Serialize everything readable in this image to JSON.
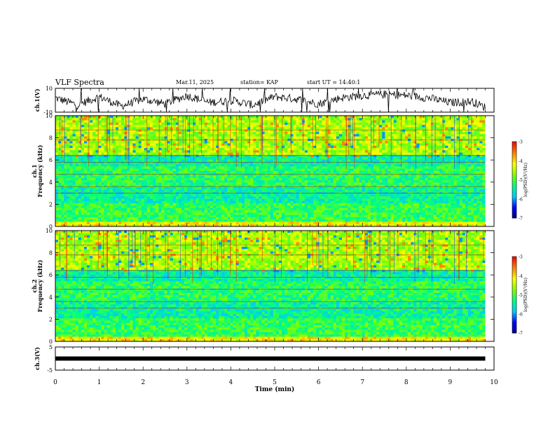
{
  "header": {
    "title": "VLF Spectra",
    "date": "Mar.11, 2025",
    "station": "station= KAP",
    "start": "start UT =  14:40:1"
  },
  "chart_data": [
    {
      "type": "line",
      "panel": "ch1-waveform",
      "ylabel": "ch.1(V)",
      "ylim": [
        -10,
        10
      ],
      "yticks": [
        "10",
        "-10"
      ],
      "series_color": "#000000",
      "note_values": "waveform trace spanning the full range, roughly -10 to 10 V",
      "x": [
        0,
        0.5,
        1,
        1.5,
        2,
        2.5,
        3,
        3.5,
        4,
        4.5,
        5,
        5.5,
        6,
        6.5,
        7,
        7.5,
        8,
        8.5,
        9,
        9.5,
        9.8
      ],
      "values": [
        2,
        -4,
        3,
        -5,
        1,
        -3,
        4,
        -2,
        0,
        -4,
        3,
        1,
        -3,
        2,
        4,
        5,
        4,
        2,
        -2,
        -1,
        -6
      ]
    },
    {
      "type": "heatmap",
      "panel": "ch1-spectrogram",
      "ylabel": "ch.1\nFrequency (kHz)",
      "ylim": [
        0,
        10
      ],
      "yticks": [
        "0",
        "2",
        "4",
        "6",
        "8",
        "10"
      ],
      "colorbar": {
        "label": "log(PSD)(V²/Hz)",
        "ticks": [
          "-3",
          "-4",
          "-5",
          "-6",
          "-7"
        ],
        "range": [
          -7,
          -3
        ]
      }
    },
    {
      "type": "heatmap",
      "panel": "ch2-spectrogram",
      "ylabel": "ch.2\nFrequency (kHz)",
      "ylim": [
        0,
        10
      ],
      "yticks": [
        "0",
        "2",
        "4",
        "6",
        "8",
        "10"
      ],
      "colorbar": {
        "label": "log(PSD)(V²/Hz)",
        "ticks": [
          "-3",
          "-4",
          "-5",
          "-6",
          "-7"
        ],
        "range": [
          -7,
          -3
        ]
      }
    },
    {
      "type": "line",
      "panel": "ch3-signal",
      "ylabel": "ch.3(V)",
      "ylim": [
        -5,
        5
      ],
      "yticks": [
        "5",
        "-5"
      ],
      "x": [
        0,
        9.8
      ],
      "values": [
        0,
        0
      ]
    }
  ],
  "xaxis": {
    "label": "Time (min)",
    "range": [
      0,
      10
    ],
    "ticks": [
      "0",
      "1",
      "2",
      "3",
      "4",
      "5",
      "6",
      "7",
      "8",
      "9",
      "10"
    ]
  },
  "colormap": [
    "#000080",
    "#0000ff",
    "#00c8ff",
    "#00ff80",
    "#80ff00",
    "#ffff00",
    "#ff8000",
    "#ff0000",
    "#ffffff"
  ]
}
